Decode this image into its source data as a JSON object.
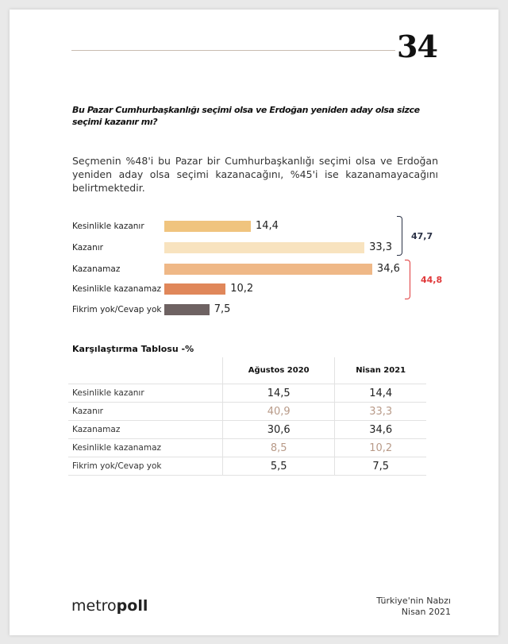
{
  "page_number": "34",
  "question": "Bu Pazar Cumhurbaşkanlığı seçimi olsa ve Erdoğan yeniden aday olsa sizce seçimi kazanır mı?",
  "description": "Seçmenin %48'i bu Pazar bir Cumhurbaşkanlığı seçimi olsa ve Erdoğan yeniden aday olsa seçimi kazanacağını, %45'i ise kazanamayacağını belirtmektedir.",
  "chart_data": {
    "type": "bar",
    "orientation": "horizontal",
    "categories": [
      "Kesinlikle kazanır",
      "Kazanır",
      "Kazanamaz",
      "Kesinlikle kazanamaz",
      "Fikrim yok/Cevap yok"
    ],
    "values": [
      14.4,
      33.3,
      34.6,
      10.2,
      7.5
    ],
    "value_labels": [
      "14,4",
      "33,3",
      "34,6",
      "10,2",
      "7,5"
    ],
    "colors": [
      "#f0c47e",
      "#f8e3bf",
      "#efb887",
      "#e0875a",
      "#6e6262"
    ],
    "groups": [
      {
        "label": "47,7",
        "members": [
          0,
          1
        ],
        "color": "#2b3246"
      },
      {
        "label": "44,8",
        "members": [
          2,
          3
        ],
        "color": "#e0393a"
      }
    ]
  },
  "table": {
    "title": "Karşılaştırma Tablosu -%",
    "headers": [
      "",
      "Ağustos 2020",
      "Nisan 2021"
    ],
    "rows": [
      {
        "label": "Kesinlikle kazanır",
        "v": [
          "14,5",
          "14,4"
        ]
      },
      {
        "label": "Kazanır",
        "v": [
          "40,9",
          "33,3"
        ]
      },
      {
        "label": "Kazanamaz",
        "v": [
          "30,6",
          "34,6"
        ]
      },
      {
        "label": "Kesinlikle kazanamaz",
        "v": [
          "8,5",
          "10,2"
        ]
      },
      {
        "label": "Fikrim yok/Cevap yok",
        "v": [
          "5,5",
          "7,5"
        ]
      }
    ]
  },
  "footer": {
    "logo_light": "metro",
    "logo_bold": "poll",
    "line1": "Türkiye'nin Nabzı",
    "line2": "Nisan 2021"
  }
}
